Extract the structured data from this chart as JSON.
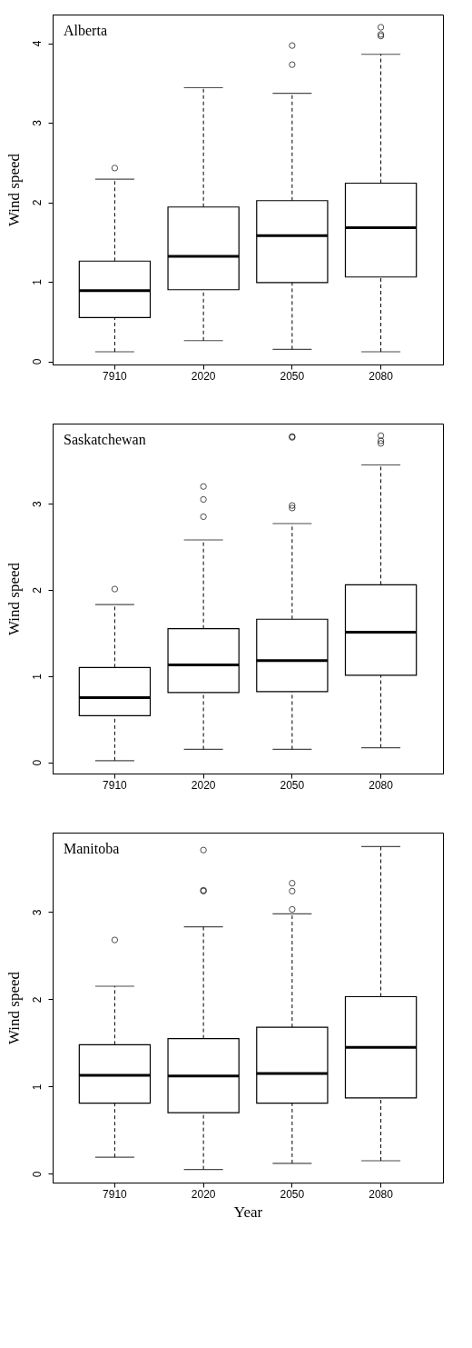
{
  "chart_data": [
    {
      "type": "box",
      "title": "Alberta",
      "ylabel": "Wind speed",
      "categories": [
        "7910",
        "2020",
        "2050",
        "2080"
      ],
      "boxes": [
        {
          "low": 0.12,
          "q1": 0.55,
          "median": 0.89,
          "q3": 1.26,
          "high": 2.29,
          "outliers": [
            2.43
          ]
        },
        {
          "low": 0.26,
          "q1": 0.9,
          "median": 1.32,
          "q3": 1.94,
          "high": 3.44
        },
        {
          "low": 0.15,
          "q1": 0.99,
          "median": 1.58,
          "q3": 2.02,
          "high": 3.37,
          "outliers": [
            3.73,
            3.97
          ]
        },
        {
          "low": 0.12,
          "q1": 1.06,
          "median": 1.68,
          "q3": 2.24,
          "high": 3.86,
          "outliers": [
            4.09,
            4.11,
            4.2
          ]
        }
      ],
      "ylim": [
        -0.04,
        4.36
      ],
      "yticks": [
        0,
        1,
        2,
        3,
        4
      ],
      "grid": false
    },
    {
      "type": "box",
      "title": "Saskatchewan",
      "ylabel": "Wind speed",
      "categories": [
        "7910",
        "2020",
        "2050",
        "2080"
      ],
      "boxes": [
        {
          "low": 0.02,
          "q1": 0.54,
          "median": 0.75,
          "q3": 1.1,
          "high": 1.83,
          "outliers": [
            2.01
          ]
        },
        {
          "low": 0.15,
          "q1": 0.81,
          "median": 1.13,
          "q3": 1.55,
          "high": 2.58,
          "outliers": [
            2.85,
            3.05,
            3.2
          ]
        },
        {
          "low": 0.15,
          "q1": 0.82,
          "median": 1.18,
          "q3": 1.66,
          "high": 2.77,
          "outliers": [
            2.95,
            2.98,
            3.77,
            3.78
          ]
        },
        {
          "low": 0.17,
          "q1": 1.01,
          "median": 1.51,
          "q3": 2.06,
          "high": 3.45,
          "outliers": [
            3.7,
            3.73,
            3.79
          ]
        }
      ],
      "ylim": [
        -0.13,
        3.93
      ],
      "yticks": [
        0,
        1,
        2,
        3
      ],
      "grid": false
    },
    {
      "type": "box",
      "title": "Manitoba",
      "xlabel": "Year",
      "ylabel": "Wind speed",
      "categories": [
        "7910",
        "2020",
        "2050",
        "2080"
      ],
      "boxes": [
        {
          "low": 0.19,
          "q1": 0.81,
          "median": 1.13,
          "q3": 1.48,
          "high": 2.15,
          "outliers": [
            2.68
          ]
        },
        {
          "low": 0.05,
          "q1": 0.7,
          "median": 1.12,
          "q3": 1.55,
          "high": 2.83,
          "outliers": [
            3.24,
            3.25,
            3.71
          ]
        },
        {
          "low": 0.12,
          "q1": 0.81,
          "median": 1.15,
          "q3": 1.68,
          "high": 2.98,
          "outliers": [
            3.03,
            3.24,
            3.33
          ]
        },
        {
          "low": 0.15,
          "q1": 0.87,
          "median": 1.45,
          "q3": 2.03,
          "high": 3.75
        }
      ],
      "ylim": [
        -0.1,
        3.91
      ],
      "yticks": [
        0,
        1,
        2,
        3
      ],
      "grid": false
    }
  ]
}
